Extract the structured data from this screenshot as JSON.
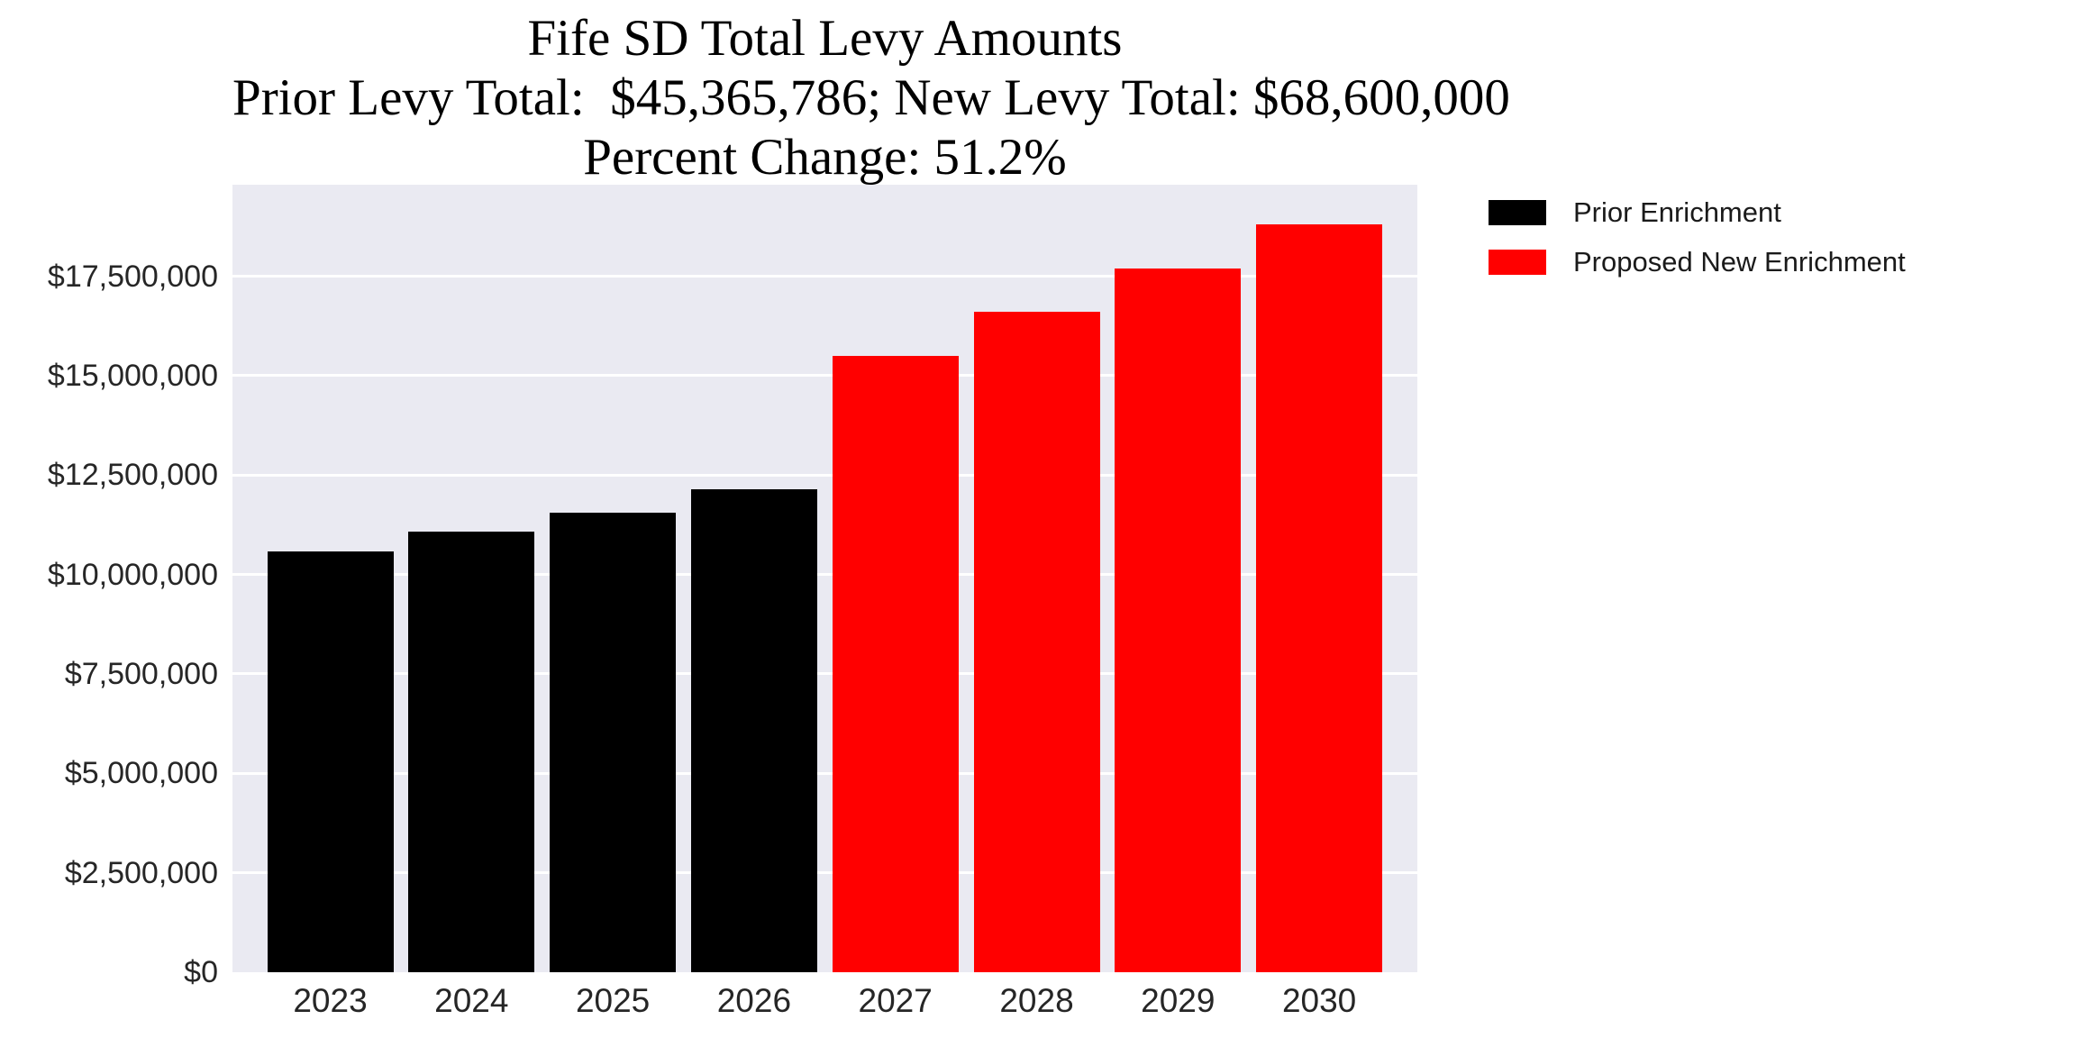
{
  "figure": {
    "title_line1": "Fife SD Total Levy Amounts",
    "title_line2": "Prior Levy Total:  $45,365,786; New Levy Total: $68,600,000",
    "title_line3": "Percent Change: 51.2%"
  },
  "legend": {
    "items": [
      {
        "label": "Prior Enrichment",
        "color": "#000000"
      },
      {
        "label": "Proposed New Enrichment",
        "color": "#ff0000"
      }
    ]
  },
  "chart_data": {
    "type": "bar",
    "title": "Fife SD Total Levy Amounts",
    "subtitle": "Prior Levy Total:  $45,365,786; New Levy Total: $68,600,000",
    "subtitle2": "Percent Change: 51.2%",
    "prior_levy_total": "$45,365,786",
    "new_levy_total": "$68,600,000",
    "percent_change": "51.2%",
    "categories": [
      "2023",
      "2024",
      "2025",
      "2026",
      "2027",
      "2028",
      "2029",
      "2030"
    ],
    "series": [
      {
        "name": "Prior Enrichment",
        "color": "#000000",
        "years": [
          "2023",
          "2024",
          "2025",
          "2026"
        ],
        "values": [
          10590786,
          11075000,
          11550000,
          12150000
        ]
      },
      {
        "name": "Proposed New Enrichment",
        "color": "#ff0000",
        "years": [
          "2027",
          "2028",
          "2029",
          "2030"
        ],
        "values": [
          15500000,
          16600000,
          17700000,
          18800000
        ]
      }
    ],
    "xlabel": "",
    "ylabel": "",
    "ylim": [
      0,
      19800000
    ],
    "ytick_interval": 2500000,
    "ytick_labels": [
      "$0",
      "$2,500,000",
      "$5,000,000",
      "$7,500,000",
      "$10,000,000",
      "$12,500,000",
      "$15,000,000",
      "$17,500,000"
    ],
    "grid": true,
    "plot_background": "#eaeaf2",
    "grid_color": "#ffffff",
    "legend_position": "upper-right-outside"
  }
}
